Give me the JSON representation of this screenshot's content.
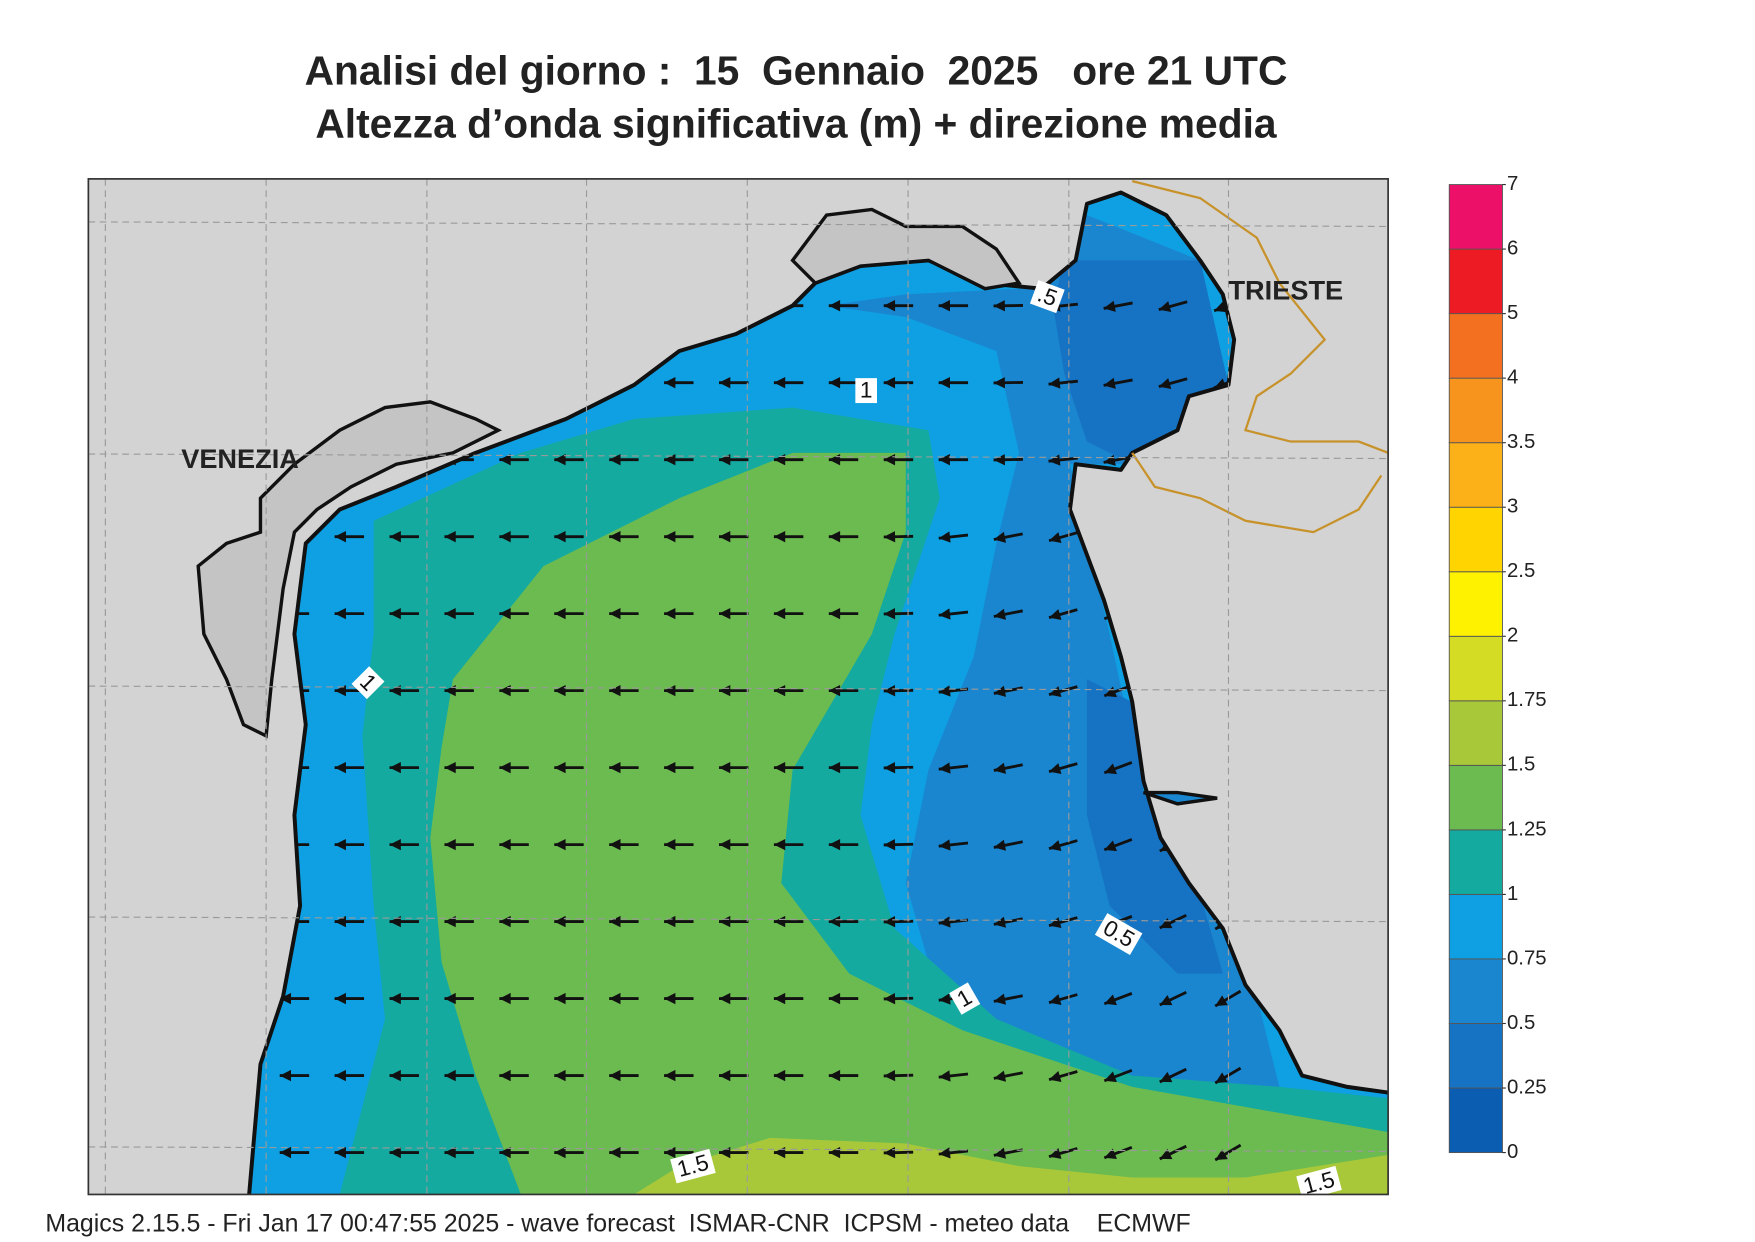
{
  "title": [
    "Analisi del giorno :  15  Gennaio  2025   ore 21 UTC",
    "Altezza d’onda significativa (m) + direzione media"
  ],
  "place_labels": [
    "VENEZIA",
    "TRIESTE"
  ],
  "contour_labels": [
    "1",
    ".5",
    "1",
    "0.5",
    "1",
    "1.5",
    "1.5"
  ],
  "colorbar": {
    "levels": [
      0,
      0.25,
      0.5,
      0.75,
      1,
      1.25,
      1.5,
      1.75,
      2,
      2.5,
      3,
      3.5,
      4,
      5,
      6,
      7
    ],
    "colors": [
      "#0a5db0",
      "#1672c2",
      "#1a86d0",
      "#0ea0e2",
      "#14aaa0",
      "#6cbb50",
      "#a8c83a",
      "#d4dd24",
      "#fff200",
      "#ffd400",
      "#fbb117",
      "#f7941d",
      "#f37021",
      "#ed1c24",
      "#ec1068"
    ]
  },
  "footer": "Magics 2.15.5 - Fri Jan 17 00:47:55 2025 - wave forecast  ISMAR-CNR  ICPSM - meteo data    ECMWF"
}
